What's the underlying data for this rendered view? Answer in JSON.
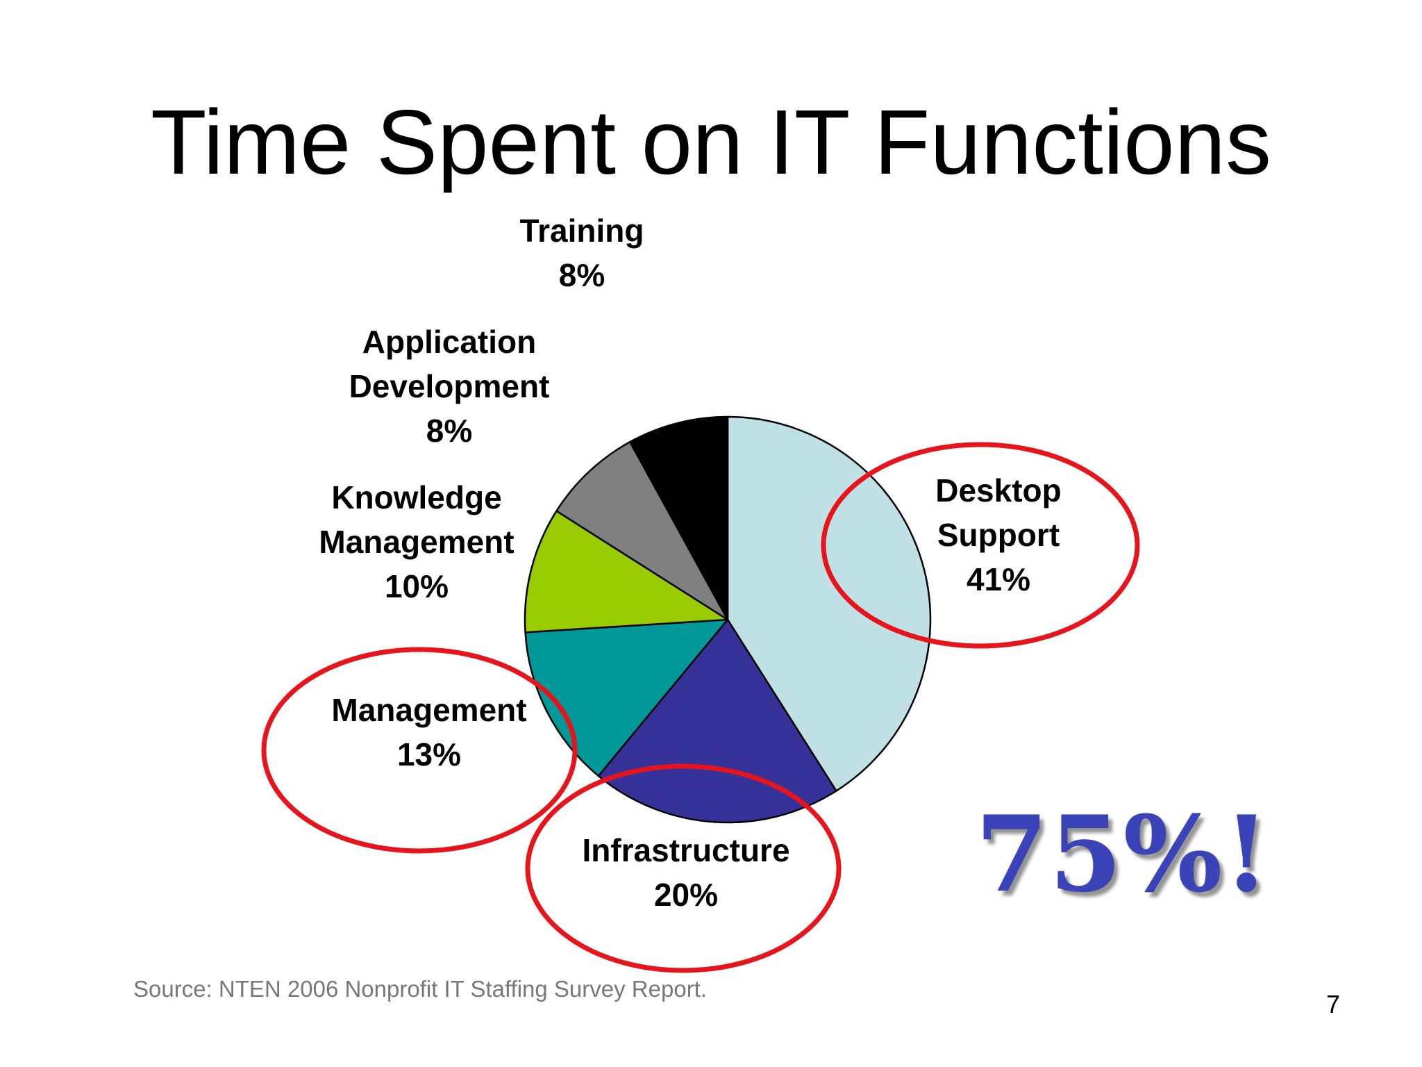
{
  "slide": {
    "title": "Time Spent on IT Functions",
    "highlight": "75%!",
    "source": "Source: NTEN 2006 Nonprofit IT Staffing Survey Report.",
    "page_number": "7"
  },
  "chart_data": {
    "type": "pie",
    "title": "Time Spent on IT Functions",
    "slices": [
      {
        "label_lines": [
          "Desktop",
          "Support",
          "41%"
        ],
        "value": 41,
        "color": "#bfe0e4",
        "circled": true
      },
      {
        "label_lines": [
          "Infrastructure",
          "20%"
        ],
        "value": 20,
        "color": "#353399",
        "circled": true
      },
      {
        "label_lines": [
          "Management",
          "13%"
        ],
        "value": 13,
        "color": "#009898",
        "circled": true
      },
      {
        "label_lines": [
          "Knowledge",
          "Management",
          "10%"
        ],
        "value": 10,
        "color": "#99cc00",
        "circled": false
      },
      {
        "label_lines": [
          "Application",
          "Development",
          "8%"
        ],
        "value": 8,
        "color": "#808080",
        "circled": false
      },
      {
        "label_lines": [
          "Training",
          "8%"
        ],
        "value": 8,
        "color": "#000000",
        "circled": false
      }
    ],
    "annotation_color": "#e8141b"
  }
}
